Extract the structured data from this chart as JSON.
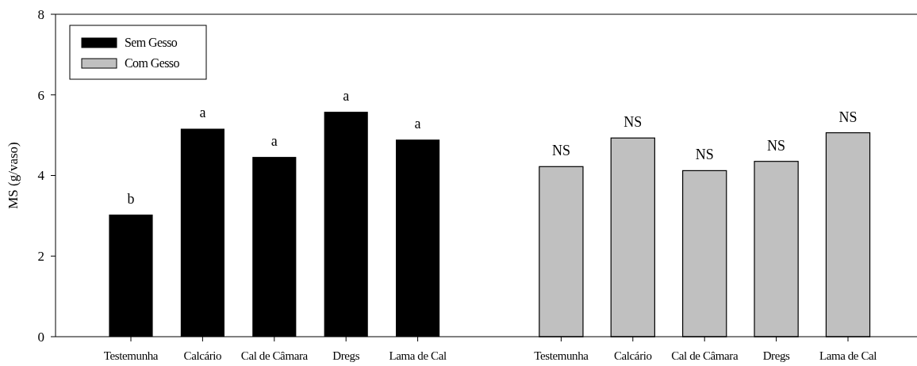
{
  "chart_data": {
    "type": "bar",
    "ylabel": "MS  (g/vaso)",
    "categories": [
      "Testemunha",
      "Calcário",
      "Cal de Câmara",
      "Dregs",
      "Lama de Cal",
      null,
      "Testemunha",
      "Calcário",
      "Cal de Câmara",
      "Dregs",
      "Lama de Cal"
    ],
    "series": [
      {
        "name": "Sem Gesso",
        "color": "#000000",
        "values": [
          3.03,
          5.16,
          4.46,
          5.58,
          4.89,
          null,
          null,
          null,
          null,
          null,
          null
        ],
        "value_labels": [
          "b",
          "a",
          "a",
          "a",
          "a",
          null,
          null,
          null,
          null,
          null,
          null
        ]
      },
      {
        "name": "Com Gesso",
        "color": "#c0c0c0",
        "values": [
          null,
          null,
          null,
          null,
          null,
          null,
          4.22,
          4.93,
          4.12,
          4.35,
          5.06
        ],
        "value_labels": [
          null,
          null,
          null,
          null,
          null,
          null,
          "NS",
          "NS",
          "NS",
          "NS",
          "NS"
        ]
      }
    ],
    "ylim": [
      0,
      8
    ],
    "yticks": [
      0,
      2,
      4,
      6,
      8
    ],
    "grid": false,
    "legend": "top left"
  }
}
